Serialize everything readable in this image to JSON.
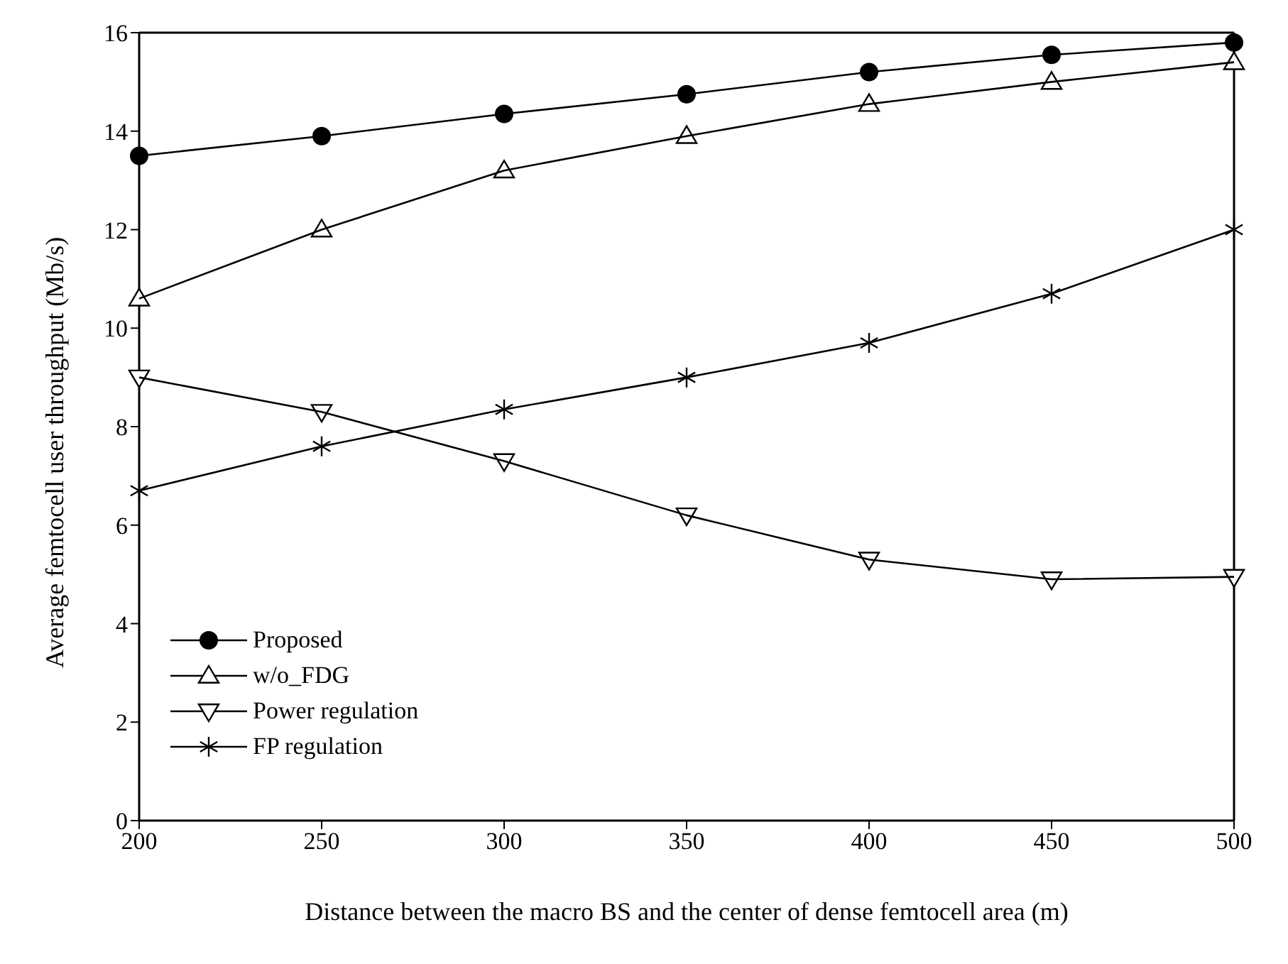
{
  "chart_data": {
    "type": "line",
    "xlabel": "Distance between the macro BS and the center of dense femtocell area (m)",
    "ylabel": "Average femtocell user throughput (Mb/s)",
    "x": [
      200,
      250,
      300,
      350,
      400,
      450,
      500
    ],
    "xlim": [
      200,
      500
    ],
    "xticks": [
      200,
      250,
      300,
      350,
      400,
      450,
      500
    ],
    "ylim": [
      0,
      16
    ],
    "yticks": [
      0,
      2,
      4,
      6,
      8,
      10,
      12,
      14,
      16
    ],
    "grid": false,
    "legend": "bottom left",
    "line_style": "solid",
    "series": [
      {
        "name": "Proposed",
        "color": "#000000",
        "marker": "circle",
        "values": [
          13.5,
          13.9,
          14.35,
          14.75,
          15.2,
          15.55,
          15.8
        ]
      },
      {
        "name": "w/o_FDG",
        "color": "#000000",
        "marker": "triangle",
        "values": [
          10.6,
          12.0,
          13.2,
          13.9,
          14.55,
          15.0,
          15.4
        ]
      },
      {
        "name": "Power regulation",
        "color": "#000000",
        "marker": "triangle-down",
        "values": [
          9.0,
          8.3,
          7.3,
          6.2,
          5.3,
          4.9,
          4.95
        ]
      },
      {
        "name": "FP regulation",
        "color": "#000000",
        "marker": "cross",
        "values": [
          6.7,
          7.6,
          8.35,
          9.0,
          9.7,
          10.7,
          12.0
        ]
      }
    ]
  }
}
